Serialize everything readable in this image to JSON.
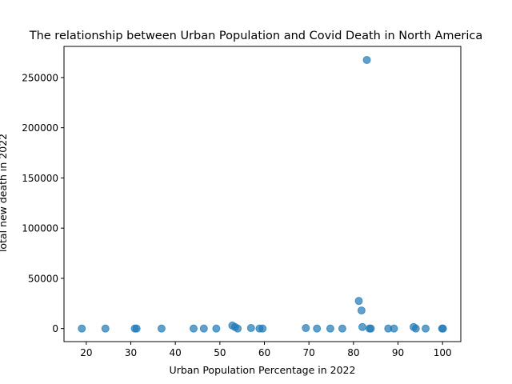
{
  "chart_data": {
    "type": "scatter",
    "title": "The relationship between Urban Population and Covid Death in North America",
    "xlabel": "Urban Population Percentage in 2022",
    "ylabel": "Total new death in 2022",
    "xlim": [
      15,
      104.1
    ],
    "ylim": [
      -13000,
      281000
    ],
    "xticks": [
      20,
      30,
      40,
      50,
      60,
      70,
      80,
      90,
      100
    ],
    "yticks": [
      0,
      50000,
      100000,
      150000,
      200000,
      250000
    ],
    "grid": false,
    "legend": "none",
    "color": "#1f77b4",
    "points": [
      {
        "x": 19.0,
        "y": 0
      },
      {
        "x": 24.3,
        "y": 0
      },
      {
        "x": 30.9,
        "y": 0
      },
      {
        "x": 31.3,
        "y": 0
      },
      {
        "x": 36.9,
        "y": 0
      },
      {
        "x": 44.1,
        "y": 0
      },
      {
        "x": 46.4,
        "y": 0
      },
      {
        "x": 49.2,
        "y": 0
      },
      {
        "x": 52.8,
        "y": 3000
      },
      {
        "x": 53.4,
        "y": 1500
      },
      {
        "x": 54.0,
        "y": 0
      },
      {
        "x": 57.0,
        "y": 500
      },
      {
        "x": 58.9,
        "y": 0
      },
      {
        "x": 59.6,
        "y": 0
      },
      {
        "x": 69.3,
        "y": 500
      },
      {
        "x": 71.8,
        "y": 0
      },
      {
        "x": 74.8,
        "y": 0
      },
      {
        "x": 77.5,
        "y": 0
      },
      {
        "x": 81.2,
        "y": 27500
      },
      {
        "x": 81.8,
        "y": 18000
      },
      {
        "x": 82.0,
        "y": 1500
      },
      {
        "x": 83.0,
        "y": 267500
      },
      {
        "x": 83.6,
        "y": 0
      },
      {
        "x": 83.9,
        "y": 0
      },
      {
        "x": 87.8,
        "y": 0
      },
      {
        "x": 89.1,
        "y": 0
      },
      {
        "x": 93.5,
        "y": 1500
      },
      {
        "x": 94.0,
        "y": 0
      },
      {
        "x": 96.2,
        "y": 0
      },
      {
        "x": 99.9,
        "y": 0
      },
      {
        "x": 100.1,
        "y": 0
      }
    ]
  }
}
